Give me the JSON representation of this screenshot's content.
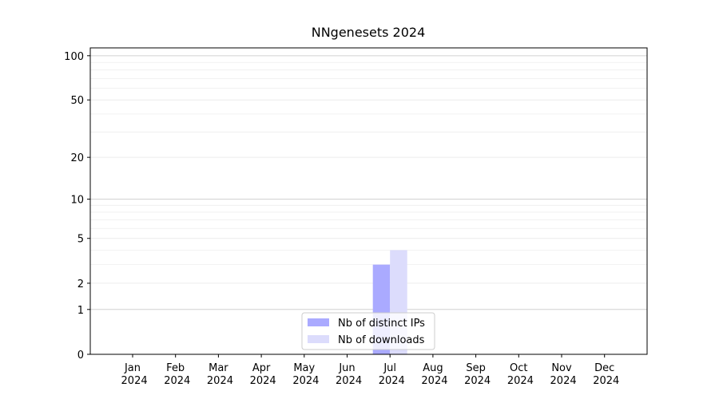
{
  "chart_data": {
    "type": "bar",
    "title": "NNgenesets 2024",
    "categories": [
      "Jan 2024",
      "Feb 2024",
      "Mar 2024",
      "Apr 2024",
      "May 2024",
      "Jun 2024",
      "Jul 2024",
      "Aug 2024",
      "Sep 2024",
      "Oct 2024",
      "Nov 2024",
      "Dec 2024"
    ],
    "series": [
      {
        "name": "Nb of distinct IPs",
        "color": "#aaaaff",
        "values": [
          0,
          0,
          0,
          0,
          0,
          0,
          3,
          0,
          0,
          0,
          0,
          0
        ]
      },
      {
        "name": "Nb of downloads",
        "color": "#dcdcfc",
        "values": [
          0,
          0,
          0,
          0,
          0,
          0,
          4,
          0,
          0,
          0,
          0,
          0
        ]
      }
    ],
    "yscale": "log1p",
    "ylim": [
      0,
      113
    ],
    "yticks": [
      0,
      1,
      2,
      5,
      10,
      20,
      50,
      100
    ],
    "minor_yticks": [
      3,
      4,
      6,
      7,
      8,
      9,
      30,
      40,
      60,
      70,
      80,
      90
    ],
    "grid": true,
    "legend": "lower center"
  }
}
